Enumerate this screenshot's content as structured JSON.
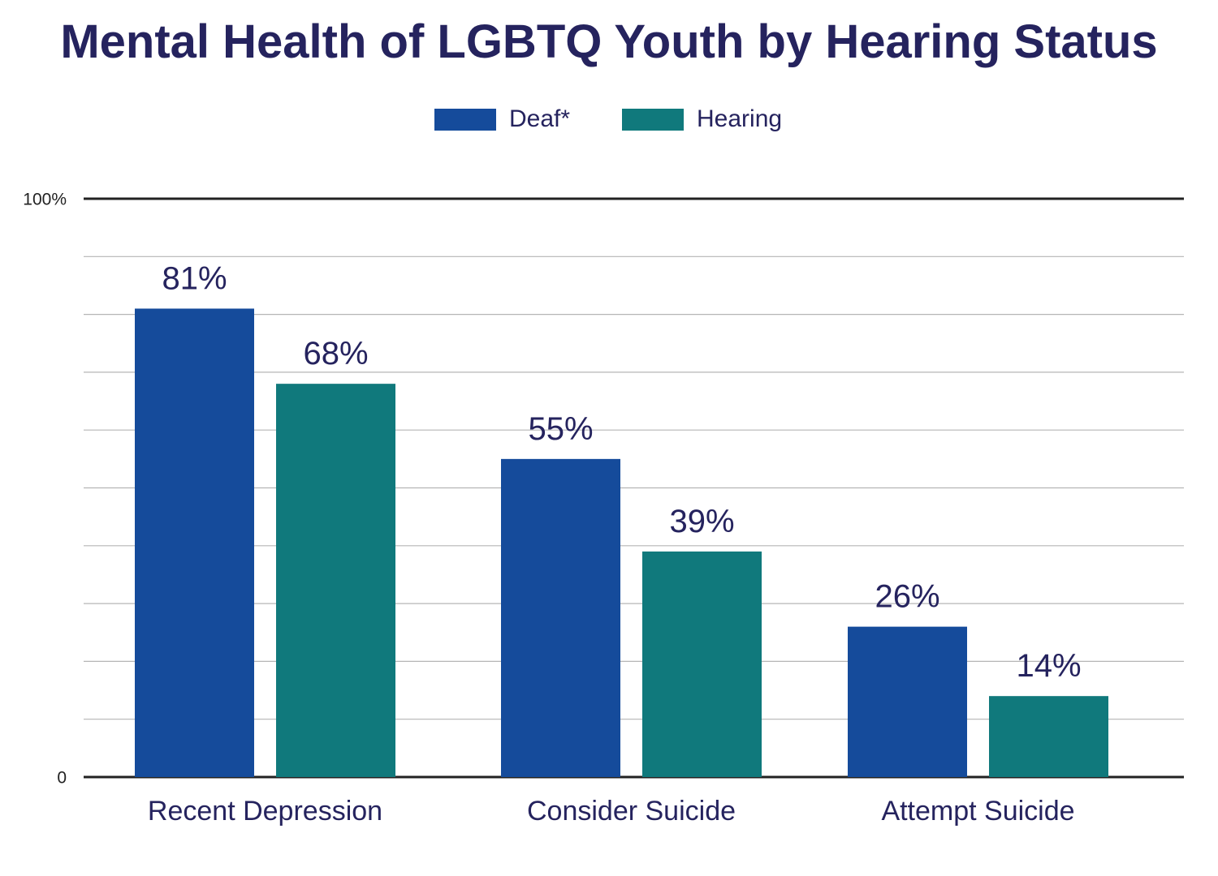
{
  "chart_data": {
    "type": "bar",
    "title": "Mental Health of LGBTQ Youth by Hearing Status",
    "categories": [
      "Recent Depression",
      "Consider Suicide",
      "Attempt Suicide"
    ],
    "series": [
      {
        "name": "Deaf*",
        "color": "#154b9b",
        "values": [
          81,
          55,
          26
        ],
        "labels": [
          "81%",
          "55%",
          "26%"
        ]
      },
      {
        "name": "Hearing",
        "color": "#10797c",
        "values": [
          68,
          39,
          14
        ],
        "labels": [
          "68%",
          "39%",
          "14%"
        ]
      }
    ],
    "ylim": [
      0,
      100
    ],
    "yticks": [
      {
        "value": 0,
        "label": "0"
      },
      {
        "value": 100,
        "label": "100%"
      }
    ],
    "grid": true,
    "grid_step": 10,
    "legend": "top-center",
    "xlabel": "",
    "ylabel": ""
  }
}
